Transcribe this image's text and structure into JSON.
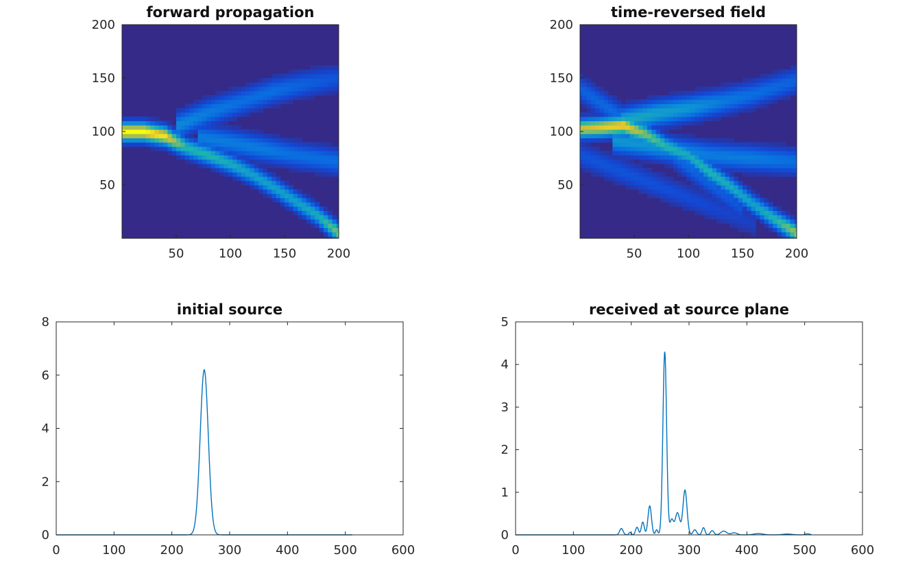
{
  "chart_data": [
    {
      "type": "heatmap",
      "title": "forward propagation",
      "xlim": [
        0,
        200
      ],
      "ylim": [
        0,
        200
      ],
      "xticks": [
        50,
        100,
        150,
        200
      ],
      "yticks": [
        50,
        100,
        150,
        200
      ],
      "colormap": "parula",
      "background_color": "#352a87",
      "features": [
        {
          "kind": "beam",
          "path": [
            [
              0,
              100
            ],
            [
              20,
              100
            ],
            [
              40,
              96
            ],
            [
              60,
              85
            ],
            [
              80,
              78
            ],
            [
              100,
              70
            ],
            [
              120,
              60
            ],
            [
              140,
              48
            ],
            [
              160,
              35
            ],
            [
              180,
              22
            ],
            [
              200,
              5
            ]
          ],
          "intensity": [
            1.0,
            1.0,
            0.95,
            0.6,
            0.6,
            0.55,
            0.5,
            0.5,
            0.5,
            0.55,
            0.75
          ]
        },
        {
          "kind": "branch",
          "path": [
            [
              50,
              105
            ],
            [
              80,
              118
            ],
            [
              110,
              128
            ],
            [
              140,
              138
            ],
            [
              170,
              145
            ],
            [
              200,
              150
            ]
          ],
          "intensity": [
            0.4,
            0.35,
            0.3,
            0.3,
            0.25,
            0.2
          ]
        },
        {
          "kind": "branch",
          "path": [
            [
              70,
              95
            ],
            [
              100,
              90
            ],
            [
              130,
              84
            ],
            [
              160,
              78
            ],
            [
              200,
              72
            ]
          ],
          "intensity": [
            0.35,
            0.35,
            0.35,
            0.3,
            0.3
          ]
        }
      ]
    },
    {
      "type": "heatmap",
      "title": "time-reversed field",
      "xlim": [
        0,
        200
      ],
      "ylim": [
        0,
        200
      ],
      "xticks": [
        50,
        100,
        150,
        200
      ],
      "yticks": [
        50,
        100,
        150,
        200
      ],
      "colormap": "parula",
      "background_color": "#352a87",
      "features": [
        {
          "kind": "beam",
          "path": [
            [
              0,
              103
            ],
            [
              20,
              104
            ],
            [
              40,
              106
            ],
            [
              60,
              98
            ],
            [
              80,
              86
            ],
            [
              100,
              78
            ],
            [
              120,
              62
            ],
            [
              140,
              48
            ],
            [
              160,
              32
            ],
            [
              180,
              18
            ],
            [
              200,
              5
            ]
          ],
          "intensity": [
            0.85,
            0.9,
            0.95,
            0.75,
            0.6,
            0.55,
            0.6,
            0.55,
            0.5,
            0.6,
            0.8
          ]
        },
        {
          "kind": "branch",
          "path": [
            [
              40,
              110
            ],
            [
              70,
              117
            ],
            [
              100,
              122
            ],
            [
              130,
              128
            ],
            [
              160,
              135
            ],
            [
              200,
              148
            ]
          ],
          "intensity": [
            0.55,
            0.5,
            0.45,
            0.35,
            0.3,
            0.25
          ]
        },
        {
          "kind": "branch",
          "path": [
            [
              30,
              92
            ],
            [
              60,
              88
            ],
            [
              90,
              82
            ],
            [
              120,
              78
            ],
            [
              160,
              75
            ],
            [
              200,
              72
            ]
          ],
          "intensity": [
            0.45,
            0.45,
            0.4,
            0.35,
            0.35,
            0.3
          ]
        },
        {
          "kind": "branch",
          "path": [
            [
              0,
              140
            ],
            [
              40,
              112
            ],
            [
              80,
              84
            ],
            [
              120,
              52
            ],
            [
              150,
              28
            ]
          ],
          "intensity": [
            0.25,
            0.3,
            0.3,
            0.25,
            0.2
          ]
        },
        {
          "kind": "branch",
          "path": [
            [
              0,
              78
            ],
            [
              40,
              62
            ],
            [
              80,
              46
            ],
            [
              120,
              30
            ],
            [
              160,
              14
            ]
          ],
          "intensity": [
            0.2,
            0.2,
            0.18,
            0.15,
            0.12
          ]
        }
      ]
    },
    {
      "type": "line",
      "title": "initial source",
      "xlim": [
        0,
        600
      ],
      "ylim": [
        0,
        8
      ],
      "xticks": [
        0,
        100,
        200,
        300,
        400,
        500,
        600
      ],
      "yticks": [
        0,
        2,
        4,
        6,
        8
      ],
      "color": "#0072bd",
      "x_range": [
        0,
        512
      ],
      "peaks": [
        {
          "center": 256,
          "height": 6.2,
          "width": 7
        }
      ]
    },
    {
      "type": "line",
      "title": "received at source plane",
      "xlim": [
        0,
        600
      ],
      "ylim": [
        0,
        5
      ],
      "xticks": [
        0,
        100,
        200,
        300,
        400,
        500,
        600
      ],
      "yticks": [
        0,
        1,
        2,
        3,
        4,
        5
      ],
      "color": "#0072bd",
      "x_range": [
        0,
        512
      ],
      "peaks": [
        {
          "center": 183,
          "height": 0.15,
          "width": 3
        },
        {
          "center": 198,
          "height": 0.06,
          "width": 2
        },
        {
          "center": 210,
          "height": 0.18,
          "width": 2.5
        },
        {
          "center": 220,
          "height": 0.3,
          "width": 2.5
        },
        {
          "center": 232,
          "height": 0.68,
          "width": 3
        },
        {
          "center": 244,
          "height": 0.12,
          "width": 2
        },
        {
          "center": 258,
          "height": 4.3,
          "width": 3.2
        },
        {
          "center": 270,
          "height": 0.35,
          "width": 3
        },
        {
          "center": 280,
          "height": 0.52,
          "width": 4
        },
        {
          "center": 293,
          "height": 1.05,
          "width": 3.5
        },
        {
          "center": 310,
          "height": 0.12,
          "width": 3
        },
        {
          "center": 325,
          "height": 0.17,
          "width": 2.5
        },
        {
          "center": 340,
          "height": 0.1,
          "width": 3
        },
        {
          "center": 360,
          "height": 0.09,
          "width": 5
        },
        {
          "center": 378,
          "height": 0.05,
          "width": 5
        },
        {
          "center": 420,
          "height": 0.03,
          "width": 8
        },
        {
          "center": 470,
          "height": 0.02,
          "width": 8
        },
        {
          "center": 505,
          "height": 0.025,
          "width": 4
        }
      ]
    }
  ]
}
